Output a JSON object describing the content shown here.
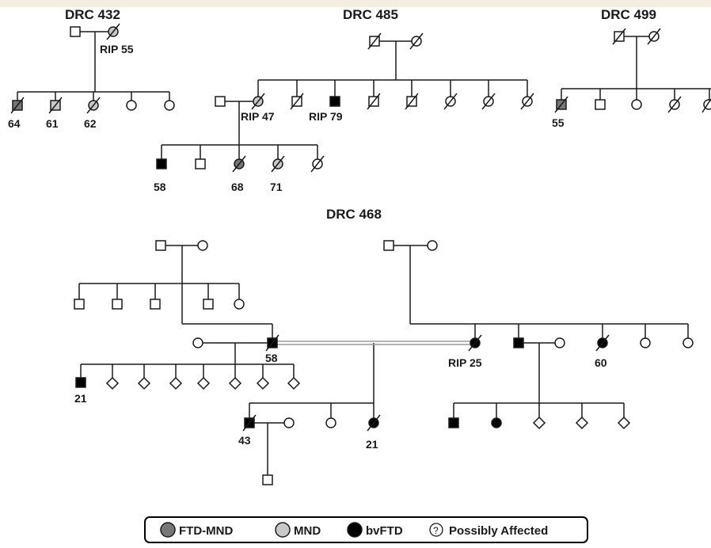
{
  "colors": {
    "ftd_mnd": "#777777",
    "mnd": "#c8c8c8",
    "bvftd": "#000000",
    "unaffected": "#ffffff",
    "line": "#1a1a1a",
    "consanguinity": "#9a9a9a"
  },
  "families": {
    "drc432": {
      "title": "DRC 432",
      "labels": {
        "mother_rip": "RIP 55",
        "c1": "64",
        "c2": "61",
        "c3": "62"
      }
    },
    "drc485": {
      "title": "DRC 485",
      "labels": {
        "sib_rip47": "RIP 47",
        "sib_rip79": "RIP 79",
        "gc1": "58",
        "gc3": "68",
        "gc4": "71"
      }
    },
    "drc499": {
      "title": "DRC 499",
      "labels": {
        "c1": "55"
      }
    },
    "drc468": {
      "title": "DRC 468",
      "labels": {
        "proband_father": "58",
        "proband_mother_rip": "RIP 25",
        "right_sib_black": "60",
        "left_child": "21",
        "son_43": "43",
        "dau_21": "21"
      }
    }
  },
  "legend": {
    "items": [
      {
        "label": "FTD-MND",
        "fill_key": "ftd_mnd",
        "symbol": "circle"
      },
      {
        "label": "MND",
        "fill_key": "mnd",
        "symbol": "circle"
      },
      {
        "label": "bvFTD",
        "fill_key": "bvftd",
        "symbol": "circle"
      },
      {
        "label": "Possibly Affected",
        "fill_key": "unaffected",
        "symbol": "question-circle",
        "glyph": "?"
      }
    ]
  }
}
